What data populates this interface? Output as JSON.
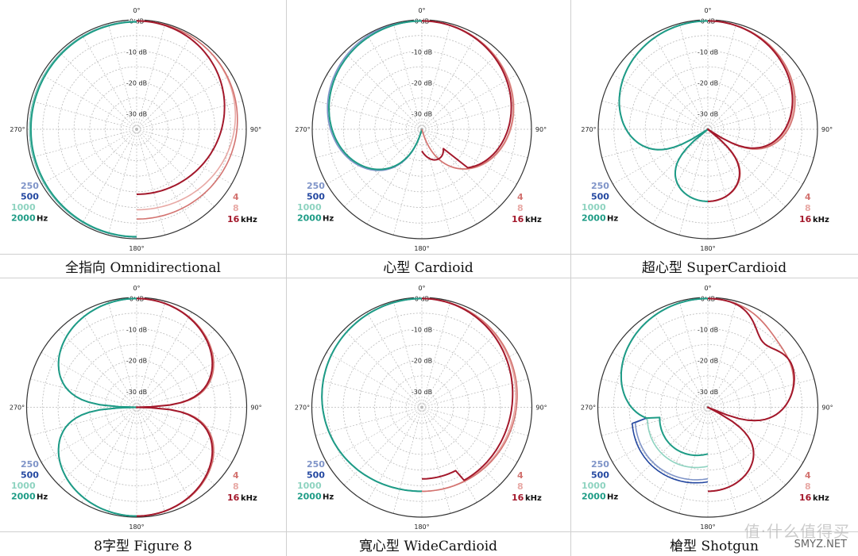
{
  "common": {
    "angle_labels": [
      "0°",
      "90°",
      "180°",
      "270°"
    ],
    "db_labels": [
      "0 dB",
      "-10 dB",
      "-20 dB",
      "-30 dB"
    ],
    "db_values": [
      0,
      -10,
      -20,
      -30
    ],
    "low_legend": {
      "labels": [
        "250",
        "500",
        "1000",
        "2000"
      ],
      "unit": "Hz"
    },
    "high_legend": {
      "labels": [
        "4",
        "8",
        "16"
      ],
      "unit": "kHz"
    },
    "colors": {
      "250": "#7f94c8",
      "500": "#2347a0",
      "1000": "#8ed3c0",
      "2000": "#1e9c86",
      "4": "#d37370",
      "8": "#e8a9a5",
      "16": "#a3182b",
      "ring": "#333333",
      "grid": "#b9b9b9",
      "label": "#222222"
    }
  },
  "watermark": "值·什么值得买",
  "watermark_sub": "SMYZ.NET",
  "chart_data": [
    {
      "type": "polar",
      "title": "全指向 Omnidirectional",
      "pattern": "omni",
      "rlim": [
        -35,
        0
      ]
    },
    {
      "type": "polar",
      "title": "心型 Cardioid",
      "pattern": "cardioid",
      "rlim": [
        -35,
        0
      ]
    },
    {
      "type": "polar",
      "title": "超心型 SuperCardioid",
      "pattern": "supercardioid",
      "rlim": [
        -35,
        0
      ]
    },
    {
      "type": "polar",
      "title": "8字型 Figure 8",
      "pattern": "figure8",
      "rlim": [
        -35,
        0
      ]
    },
    {
      "type": "polar",
      "title": "寬心型 WideCardioid",
      "pattern": "widecardioid",
      "rlim": [
        -35,
        0
      ]
    },
    {
      "type": "polar",
      "title": "槍型 Shotgun",
      "pattern": "shotgun",
      "rlim": [
        -35,
        0
      ]
    }
  ]
}
